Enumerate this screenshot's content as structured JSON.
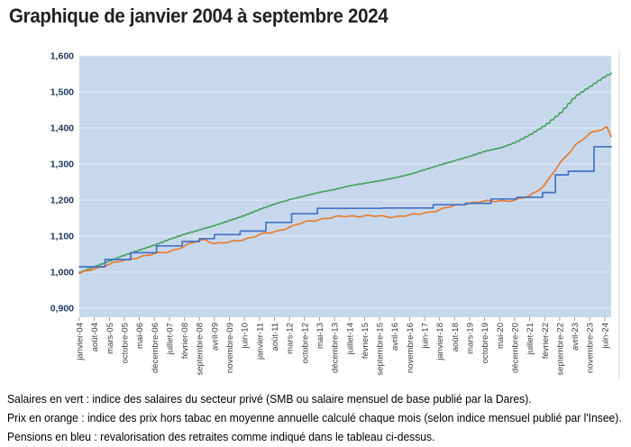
{
  "page": {
    "title": "Graphique de janvier 2004 à septembre 2024"
  },
  "captions": [
    "Salaires en vert : indice des salaires du secteur privé (SMB ou salaire mensuel de base publié par la Dares).",
    "Prix en orange : indice des prix hors tabac en moyenne annuelle calculé chaque mois (selon indice mensuel publié par l'Insee).",
    "Pensions en bleu : revalorisation des retraites comme indiqué dans le tableau ci-dessus."
  ],
  "colors": {
    "plot_bg": "#c7d8ed",
    "gridline": "#e6ecf5",
    "tick": "#9b9b9b",
    "frame": "#d9d9d9",
    "salaires_green": "#4ca262",
    "prix_orange": "#e87d2e",
    "pensions_blue": "#4472c4",
    "y_label": "#1f3864",
    "x_label": "#3a3a3a"
  },
  "chart_data": {
    "type": "line",
    "title": "Graphique de janvier 2004 à septembre 2024",
    "x_start": "janvier-04",
    "x_end": "septembre-24",
    "months_total": 249,
    "grid": true,
    "legend_position": "none",
    "ylim_render": [
      875,
      1600
    ],
    "y_axis": {
      "tick_labels": [
        "1,600",
        "1,500",
        "1,400",
        "1,300",
        "1,200",
        "1,100",
        "1,000",
        "0,900"
      ],
      "tick_values": [
        1600,
        1500,
        1400,
        1300,
        1200,
        1100,
        1000,
        900
      ]
    },
    "x_axis": {
      "tick_labels": [
        "janvier-04",
        "août-04",
        "mars-05",
        "octobre-05",
        "mai-06",
        "décembre-06",
        "juillet-07",
        "février-08",
        "septembre-08",
        "avril-09",
        "novembre-09",
        "juin-10",
        "janvier-11",
        "août-11",
        "mars-12",
        "octobre-12",
        "mai-13",
        "décembre-13",
        "juillet-14",
        "février-15",
        "septembre-15",
        "avril-16",
        "novembre-16",
        "juin-17",
        "janvier-18",
        "août-18",
        "mars-19",
        "octobre-19",
        "mai-20",
        "décembre-20",
        "juillet-21",
        "février-22",
        "septembre-22",
        "avril-23",
        "novembre-23",
        "juin-24"
      ],
      "tick_months": [
        0,
        7,
        14,
        21,
        28,
        35,
        42,
        49,
        56,
        63,
        70,
        77,
        84,
        91,
        98,
        105,
        112,
        119,
        126,
        133,
        140,
        147,
        154,
        161,
        168,
        175,
        182,
        189,
        196,
        203,
        210,
        217,
        224,
        231,
        238,
        245
      ]
    },
    "series": [
      {
        "id": "salaires",
        "name": "Salaires (indice SMB, Dares)",
        "color_key": "salaires_green",
        "style": "line",
        "texture": "stair",
        "points": [
          [
            0,
            1000
          ],
          [
            7,
            1016
          ],
          [
            14,
            1032
          ],
          [
            21,
            1048
          ],
          [
            28,
            1062
          ],
          [
            35,
            1076
          ],
          [
            42,
            1092
          ],
          [
            49,
            1106
          ],
          [
            56,
            1118
          ],
          [
            63,
            1130
          ],
          [
            70,
            1144
          ],
          [
            77,
            1158
          ],
          [
            84,
            1175
          ],
          [
            91,
            1190
          ],
          [
            98,
            1202
          ],
          [
            105,
            1212
          ],
          [
            112,
            1222
          ],
          [
            119,
            1230
          ],
          [
            126,
            1240
          ],
          [
            133,
            1247
          ],
          [
            140,
            1254
          ],
          [
            147,
            1262
          ],
          [
            154,
            1272
          ],
          [
            161,
            1285
          ],
          [
            168,
            1298
          ],
          [
            175,
            1310
          ],
          [
            182,
            1322
          ],
          [
            189,
            1336
          ],
          [
            196,
            1345
          ],
          [
            203,
            1360
          ],
          [
            210,
            1382
          ],
          [
            217,
            1408
          ],
          [
            224,
            1442
          ],
          [
            231,
            1488
          ],
          [
            238,
            1516
          ],
          [
            245,
            1544
          ],
          [
            248,
            1552
          ]
        ]
      },
      {
        "id": "prix",
        "name": "Prix hors tabac (moyenne annuelle, Insee)",
        "color_key": "prix_orange",
        "style": "line",
        "texture": "wiggle",
        "points": [
          [
            0,
            995
          ],
          [
            7,
            1010
          ],
          [
            14,
            1022
          ],
          [
            21,
            1032
          ],
          [
            28,
            1043
          ],
          [
            35,
            1050
          ],
          [
            42,
            1058
          ],
          [
            49,
            1072
          ],
          [
            56,
            1088
          ],
          [
            59,
            1090
          ],
          [
            63,
            1080
          ],
          [
            70,
            1082
          ],
          [
            77,
            1092
          ],
          [
            84,
            1103
          ],
          [
            91,
            1112
          ],
          [
            98,
            1125
          ],
          [
            105,
            1138
          ],
          [
            112,
            1147
          ],
          [
            119,
            1152
          ],
          [
            126,
            1156
          ],
          [
            133,
            1156
          ],
          [
            140,
            1155
          ],
          [
            147,
            1154
          ],
          [
            154,
            1157
          ],
          [
            161,
            1165
          ],
          [
            168,
            1172
          ],
          [
            175,
            1185
          ],
          [
            182,
            1192
          ],
          [
            189,
            1196
          ],
          [
            196,
            1199
          ],
          [
            203,
            1198
          ],
          [
            210,
            1212
          ],
          [
            217,
            1242
          ],
          [
            224,
            1300
          ],
          [
            227,
            1322
          ],
          [
            231,
            1352
          ],
          [
            238,
            1383
          ],
          [
            243,
            1395
          ],
          [
            246,
            1403
          ],
          [
            248,
            1378
          ]
        ]
      },
      {
        "id": "pensions",
        "name": "Pensions (revalorisations des retraites)",
        "color_key": "pensions_blue",
        "style": "step",
        "texture": "none",
        "points": [
          [
            0,
            1015
          ],
          [
            12,
            1035
          ],
          [
            24,
            1054
          ],
          [
            36,
            1073
          ],
          [
            48,
            1085
          ],
          [
            56,
            1093
          ],
          [
            63,
            1104
          ],
          [
            75,
            1114
          ],
          [
            87,
            1138
          ],
          [
            99,
            1162
          ],
          [
            111,
            1177
          ],
          [
            141,
            1178
          ],
          [
            165,
            1187
          ],
          [
            180,
            1191
          ],
          [
            192,
            1203
          ],
          [
            204,
            1208
          ],
          [
            216,
            1221
          ],
          [
            222,
            1270
          ],
          [
            228,
            1280
          ],
          [
            240,
            1348
          ]
        ]
      }
    ]
  }
}
